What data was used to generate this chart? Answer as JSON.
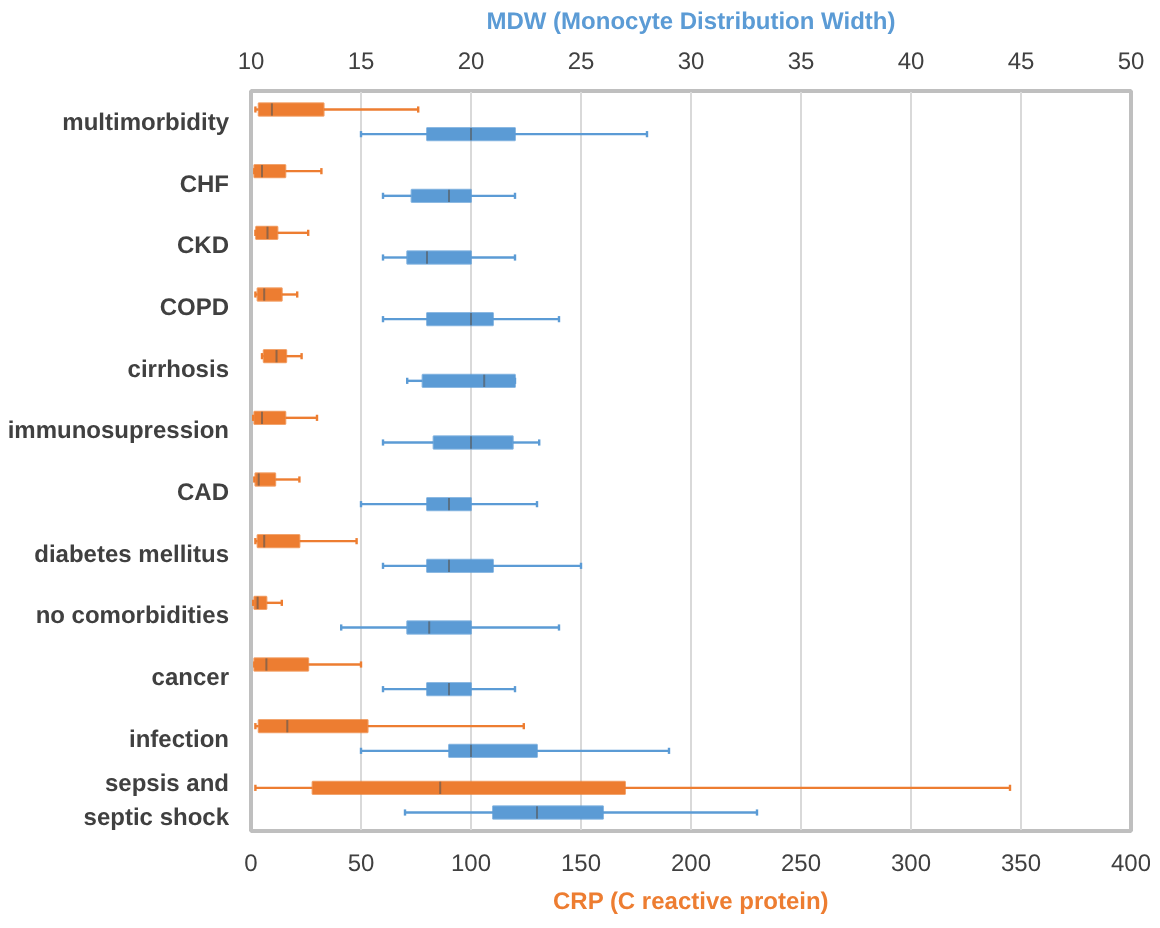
{
  "chart_data": {
    "type": "box",
    "orientation": "horizontal",
    "xlabel": "CRP (C reactive protein)",
    "x2label": "MDW (Monocyte Distribution Width)",
    "categories": [
      "multimorbidity",
      "CHF",
      "CKD",
      "COPD",
      "cirrhosis",
      "immunosupression",
      "CAD",
      "diabetes mellitus",
      "no comorbidities",
      "cancer",
      "infection",
      "sepsis and septic shock"
    ],
    "xlim": [
      0,
      400
    ],
    "xticks": [
      0,
      50,
      100,
      150,
      200,
      250,
      300,
      350,
      400
    ],
    "x2lim": [
      10,
      50
    ],
    "x2ticks": [
      10,
      15,
      20,
      25,
      30,
      35,
      40,
      45,
      50
    ],
    "grid": "x",
    "series": [
      {
        "color": "#ed7d31",
        "boxes": [
          {
            "low": 2,
            "q1": 3.5,
            "median": 9.5,
            "q3": 33,
            "high": 76
          },
          {
            "low": 1.5,
            "q1": 1.5,
            "median": 5,
            "q3": 15.6,
            "high": 32
          },
          {
            "low": 2,
            "q1": 2.3,
            "median": 7.5,
            "q3": 12,
            "high": 26
          },
          {
            "low": 2,
            "q1": 3,
            "median": 6,
            "q3": 14,
            "high": 21
          },
          {
            "low": 5,
            "q1": 5.8,
            "median": 11.6,
            "q3": 16,
            "high": 23
          },
          {
            "low": 1,
            "q1": 1.5,
            "median": 5,
            "q3": 15.6,
            "high": 30
          },
          {
            "low": 1.5,
            "q1": 2,
            "median": 3.5,
            "q3": 11,
            "high": 22
          },
          {
            "low": 2,
            "q1": 3,
            "median": 6,
            "q3": 22,
            "high": 48
          },
          {
            "low": 1,
            "q1": 1.5,
            "median": 3,
            "q3": 7,
            "high": 14
          },
          {
            "low": 1.5,
            "q1": 1.5,
            "median": 7,
            "q3": 26,
            "high": 50
          },
          {
            "low": 2,
            "q1": 3.5,
            "median": 16.5,
            "q3": 53,
            "high": 124
          },
          {
            "low": 2,
            "q1": 28,
            "median": 86,
            "q3": 170,
            "high": 345
          }
        ]
      },
      {
        "color": "#5b9bd5",
        "axis": "x2",
        "boxes": [
          {
            "low": 15,
            "q1": 18,
            "median": 20,
            "q3": 22,
            "high": 28
          },
          {
            "low": 16,
            "q1": 17.3,
            "median": 19,
            "q3": 20,
            "high": 22
          },
          {
            "low": 16,
            "q1": 17.1,
            "median": 18,
            "q3": 20,
            "high": 22
          },
          {
            "low": 16,
            "q1": 18,
            "median": 20,
            "q3": 21,
            "high": 24
          },
          {
            "low": 17.1,
            "q1": 17.8,
            "median": 20.6,
            "q3": 22,
            "high": 22
          },
          {
            "low": 16,
            "q1": 18.3,
            "median": 20,
            "q3": 21.9,
            "high": 23.1
          },
          {
            "low": 15,
            "q1": 18,
            "median": 19,
            "q3": 20,
            "high": 23
          },
          {
            "low": 16,
            "q1": 18,
            "median": 19,
            "q3": 21,
            "high": 25
          },
          {
            "low": 14.1,
            "q1": 17.1,
            "median": 18.1,
            "q3": 20,
            "high": 24
          },
          {
            "low": 16,
            "q1": 18,
            "median": 19,
            "q3": 20,
            "high": 22
          },
          {
            "low": 15,
            "q1": 19,
            "median": 20,
            "q3": 23,
            "high": 29
          },
          {
            "low": 17,
            "q1": 21,
            "median": 23,
            "q3": 26,
            "high": 33
          }
        ]
      }
    ]
  }
}
